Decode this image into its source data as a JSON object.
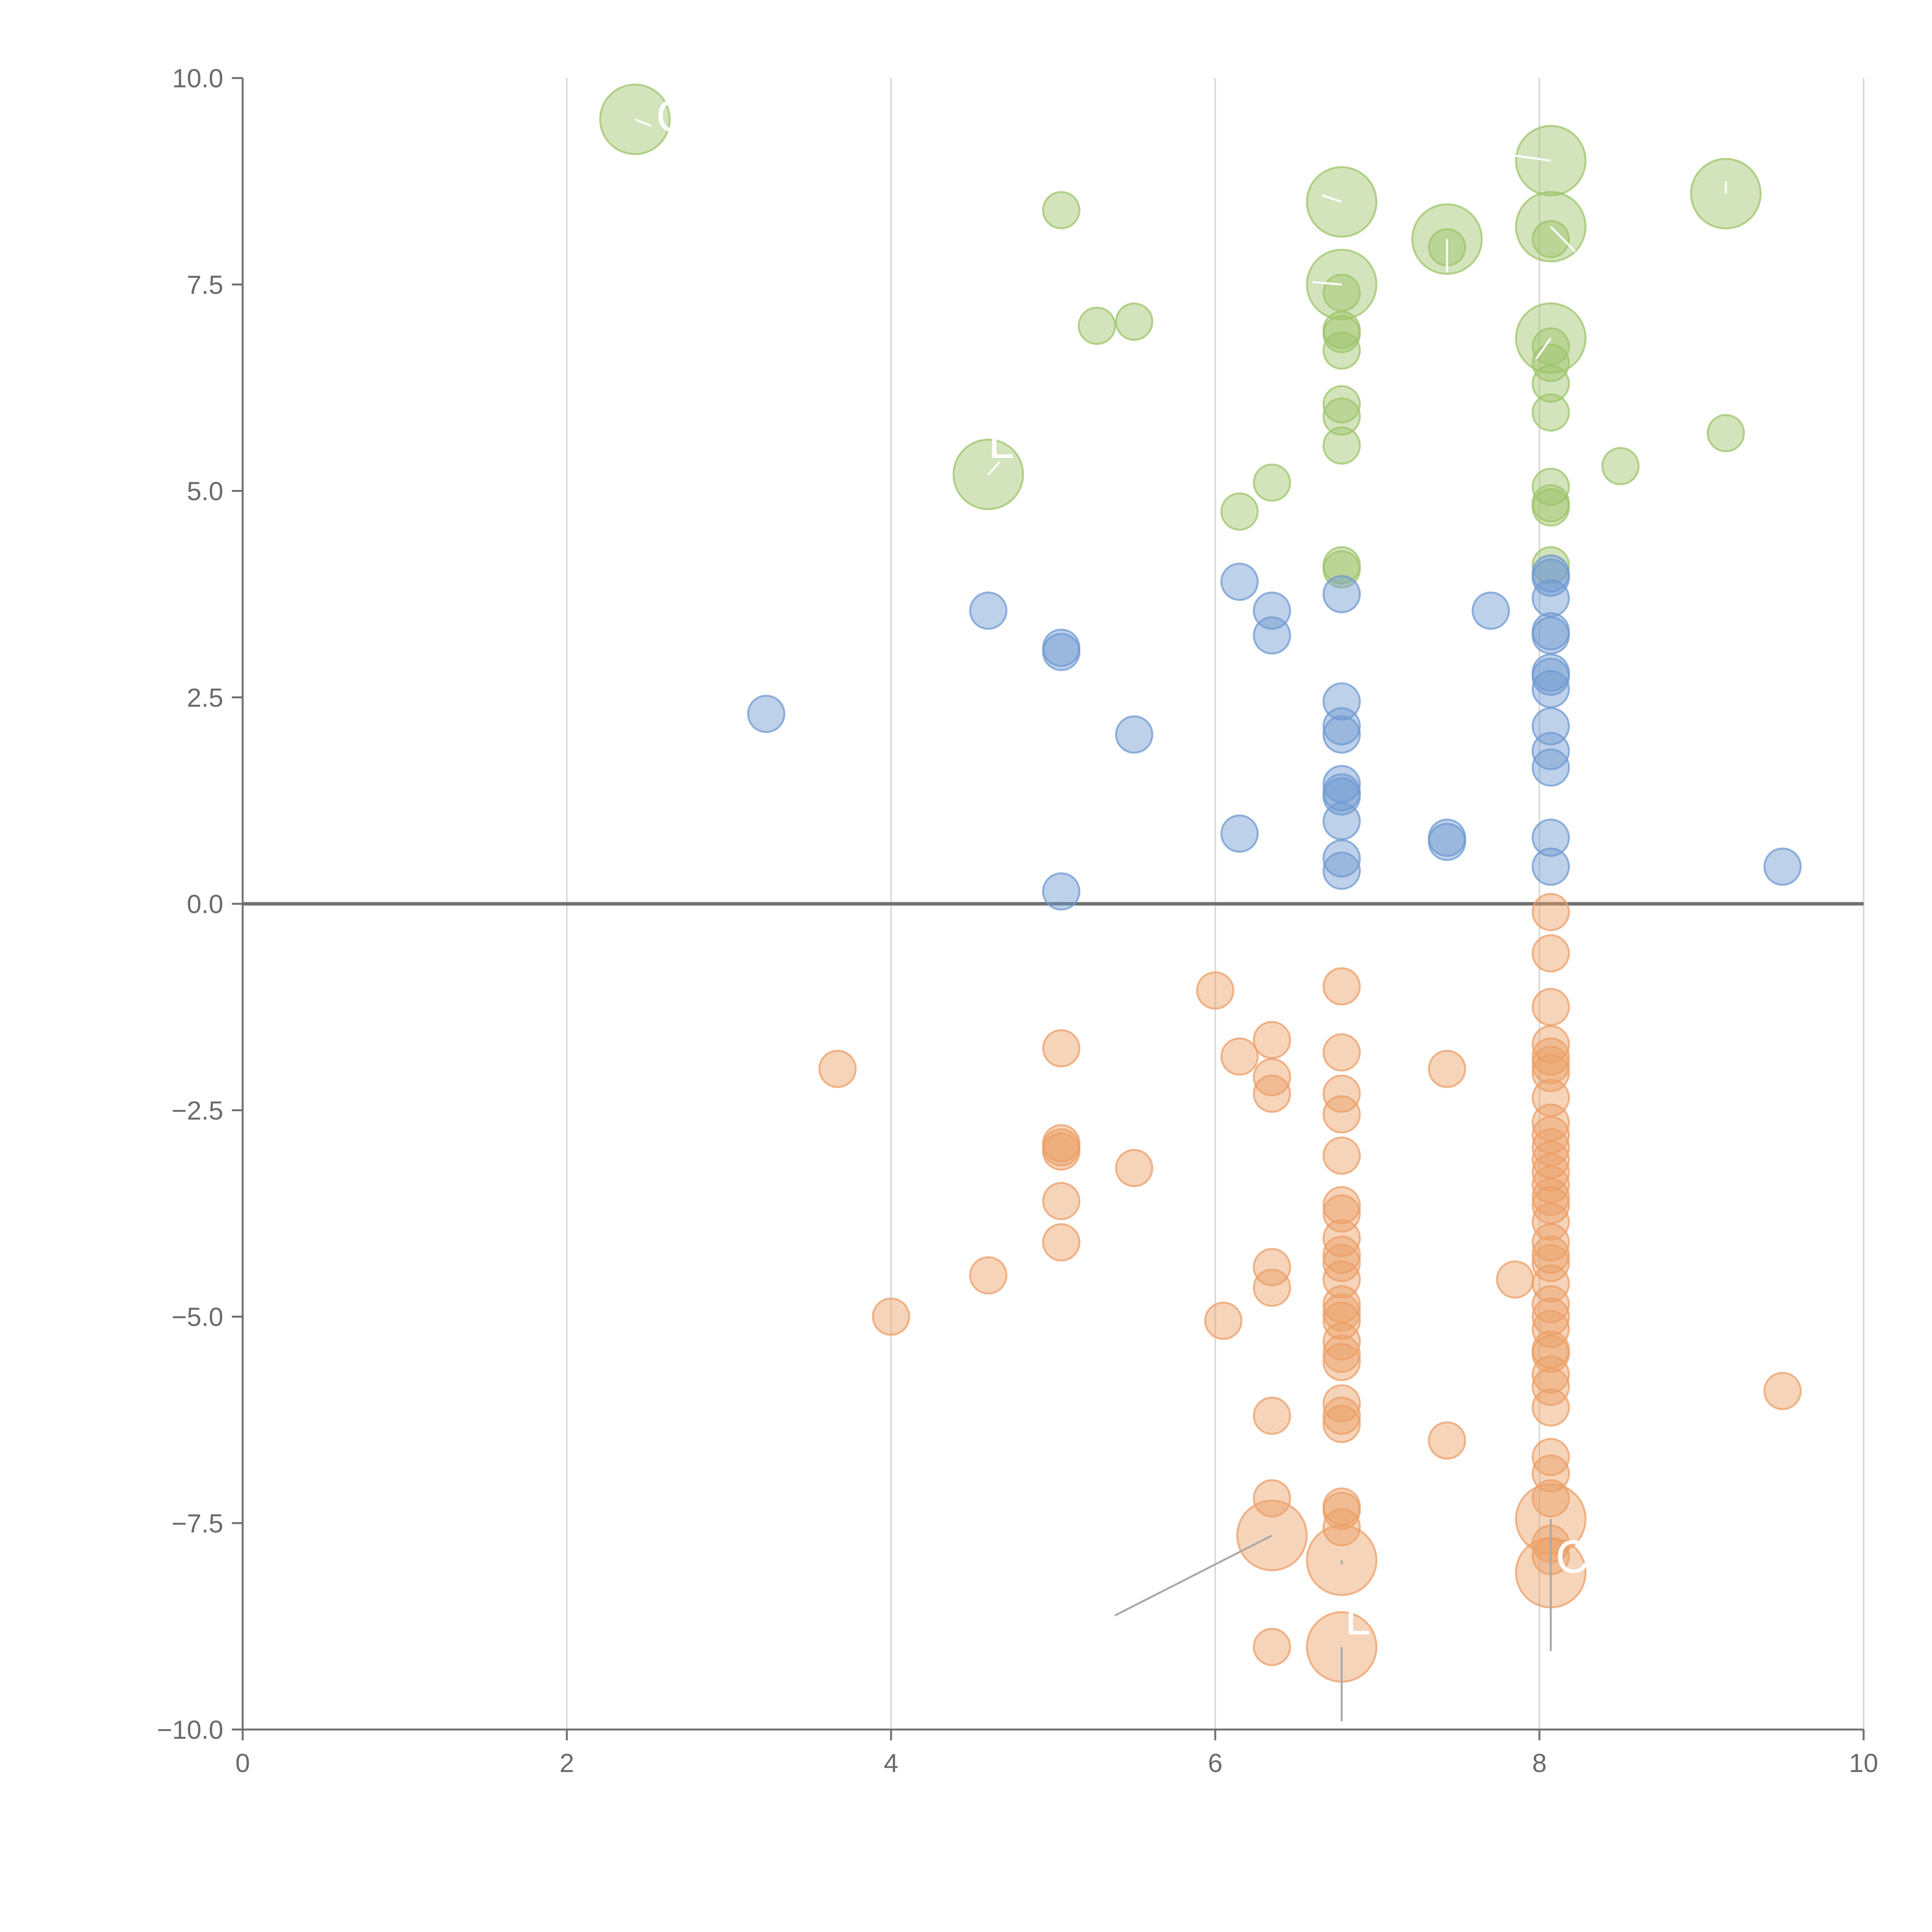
{
  "chart_data": {
    "type": "scatter",
    "title": "",
    "xlabel": "",
    "ylabel": "",
    "xlim": [
      0,
      10
    ],
    "ylim": [
      -10,
      10
    ],
    "x_ticks": [
      "0",
      "2",
      "4",
      "6",
      "8",
      "10"
    ],
    "x_tick_values": [
      0,
      2,
      4,
      6,
      8,
      10
    ],
    "y_ticks": [
      "10.0",
      "7.5",
      "5.0",
      "2.5",
      "0.0",
      "−2.5",
      "−5.0",
      "−7.5",
      "−10.0"
    ],
    "y_tick_values": [
      10,
      7.5,
      5,
      2.5,
      0,
      -2.5,
      -5,
      -7.5,
      -10
    ],
    "grid": "vertical",
    "legend": "none",
    "bubble_scale": "small = 1, large = 2",
    "series": [
      {
        "name": "green",
        "color": "#9dc46a",
        "points": [
          [
            2.42,
            9.5,
            2
          ],
          [
            5.05,
            8.4,
            1
          ],
          [
            5.27,
            7.0,
            1
          ],
          [
            5.5,
            7.05,
            1
          ],
          [
            4.6,
            5.2,
            2
          ],
          [
            6.15,
            4.75,
            1
          ],
          [
            6.35,
            5.1,
            1
          ],
          [
            6.78,
            8.5,
            2
          ],
          [
            6.78,
            7.5,
            2
          ],
          [
            6.78,
            7.4,
            1
          ],
          [
            6.78,
            6.95,
            1
          ],
          [
            6.78,
            6.9,
            1
          ],
          [
            6.78,
            6.7,
            1
          ],
          [
            6.78,
            6.05,
            1
          ],
          [
            6.78,
            5.9,
            1
          ],
          [
            6.78,
            5.55,
            1
          ],
          [
            6.78,
            4.1,
            1
          ],
          [
            6.78,
            4.05,
            1
          ],
          [
            7.43,
            8.05,
            2
          ],
          [
            7.43,
            7.95,
            1
          ],
          [
            8.07,
            9.0,
            2
          ],
          [
            8.07,
            8.2,
            2
          ],
          [
            8.07,
            8.05,
            1
          ],
          [
            8.07,
            6.85,
            2
          ],
          [
            8.07,
            6.75,
            1
          ],
          [
            8.07,
            6.55,
            1
          ],
          [
            8.07,
            6.3,
            1
          ],
          [
            8.07,
            5.95,
            1
          ],
          [
            8.07,
            5.05,
            1
          ],
          [
            8.07,
            4.85,
            1
          ],
          [
            8.07,
            4.8,
            1
          ],
          [
            8.07,
            4.1,
            1
          ],
          [
            8.5,
            5.3,
            1
          ],
          [
            9.15,
            8.6,
            2
          ],
          [
            9.15,
            5.7,
            1
          ]
        ]
      },
      {
        "name": "blue",
        "color": "#6f9ad1",
        "points": [
          [
            3.23,
            2.3,
            1
          ],
          [
            4.6,
            3.55,
            1
          ],
          [
            5.05,
            3.1,
            1
          ],
          [
            5.05,
            3.05,
            1
          ],
          [
            5.05,
            0.15,
            1
          ],
          [
            5.5,
            2.05,
            1
          ],
          [
            6.15,
            3.9,
            1
          ],
          [
            6.15,
            0.85,
            1
          ],
          [
            6.35,
            3.55,
            1
          ],
          [
            6.35,
            3.25,
            1
          ],
          [
            6.78,
            3.75,
            1
          ],
          [
            6.78,
            2.45,
            1
          ],
          [
            6.78,
            2.15,
            1
          ],
          [
            6.78,
            2.05,
            1
          ],
          [
            6.78,
            1.45,
            1
          ],
          [
            6.78,
            1.35,
            1
          ],
          [
            6.78,
            1.3,
            1
          ],
          [
            6.78,
            1.0,
            1
          ],
          [
            6.78,
            0.55,
            1
          ],
          [
            6.78,
            0.4,
            1
          ],
          [
            7.43,
            0.8,
            1
          ],
          [
            7.43,
            0.75,
            1
          ],
          [
            7.7,
            3.55,
            1
          ],
          [
            8.07,
            4.0,
            1
          ],
          [
            8.07,
            3.95,
            1
          ],
          [
            8.07,
            3.7,
            1
          ],
          [
            8.07,
            3.3,
            1
          ],
          [
            8.07,
            3.25,
            1
          ],
          [
            8.07,
            2.8,
            1
          ],
          [
            8.07,
            2.75,
            1
          ],
          [
            8.07,
            2.6,
            1
          ],
          [
            8.07,
            2.15,
            1
          ],
          [
            8.07,
            1.85,
            1
          ],
          [
            8.07,
            1.65,
            1
          ],
          [
            8.07,
            0.8,
            1
          ],
          [
            8.07,
            0.45,
            1
          ],
          [
            9.5,
            0.45,
            1
          ]
        ]
      },
      {
        "name": "orange",
        "color": "#ec9f67",
        "points": [
          [
            3.67,
            -2.0,
            1
          ],
          [
            4.0,
            -5.0,
            1
          ],
          [
            4.6,
            -4.5,
            1
          ],
          [
            5.05,
            -1.75,
            1
          ],
          [
            5.05,
            -2.9,
            1
          ],
          [
            5.05,
            -2.95,
            1
          ],
          [
            5.05,
            -3.0,
            1
          ],
          [
            5.05,
            -3.6,
            1
          ],
          [
            5.05,
            -4.1,
            1
          ],
          [
            5.5,
            -3.2,
            1
          ],
          [
            6.0,
            -1.05,
            1
          ],
          [
            6.05,
            -5.05,
            1
          ],
          [
            6.15,
            -1.85,
            1
          ],
          [
            6.35,
            -1.65,
            1
          ],
          [
            6.35,
            -2.1,
            1
          ],
          [
            6.35,
            -2.3,
            1
          ],
          [
            6.35,
            -4.4,
            1
          ],
          [
            6.35,
            -4.65,
            1
          ],
          [
            6.35,
            -6.2,
            1
          ],
          [
            6.35,
            -7.2,
            1
          ],
          [
            6.35,
            -7.65,
            2
          ],
          [
            6.35,
            -9.0,
            1
          ],
          [
            6.78,
            -1.0,
            1
          ],
          [
            6.78,
            -1.8,
            1
          ],
          [
            6.78,
            -2.3,
            1
          ],
          [
            6.78,
            -2.55,
            1
          ],
          [
            6.78,
            -3.05,
            1
          ],
          [
            6.78,
            -3.65,
            1
          ],
          [
            6.78,
            -3.75,
            1
          ],
          [
            6.78,
            -4.05,
            1
          ],
          [
            6.78,
            -4.25,
            1
          ],
          [
            6.78,
            -4.35,
            1
          ],
          [
            6.78,
            -4.55,
            1
          ],
          [
            6.78,
            -4.85,
            1
          ],
          [
            6.78,
            -4.95,
            1
          ],
          [
            6.78,
            -5.05,
            1
          ],
          [
            6.78,
            -5.3,
            1
          ],
          [
            6.78,
            -5.45,
            1
          ],
          [
            6.78,
            -5.55,
            1
          ],
          [
            6.78,
            -6.05,
            1
          ],
          [
            6.78,
            -6.2,
            1
          ],
          [
            6.78,
            -6.3,
            1
          ],
          [
            6.78,
            -7.3,
            1
          ],
          [
            6.78,
            -7.35,
            1
          ],
          [
            6.78,
            -7.55,
            1
          ],
          [
            6.78,
            -7.95,
            2
          ],
          [
            6.78,
            -9.0,
            2
          ],
          [
            7.43,
            -2.0,
            1
          ],
          [
            7.43,
            -6.5,
            1
          ],
          [
            7.85,
            -4.55,
            1
          ],
          [
            8.07,
            -0.1,
            1
          ],
          [
            8.07,
            -0.6,
            1
          ],
          [
            8.07,
            -1.25,
            1
          ],
          [
            8.07,
            -1.7,
            1
          ],
          [
            8.07,
            -1.85,
            1
          ],
          [
            8.07,
            -1.95,
            1
          ],
          [
            8.07,
            -2.05,
            1
          ],
          [
            8.07,
            -2.35,
            1
          ],
          [
            8.07,
            -2.65,
            1
          ],
          [
            8.07,
            -2.8,
            1
          ],
          [
            8.07,
            -2.95,
            1
          ],
          [
            8.07,
            -3.1,
            1
          ],
          [
            8.07,
            -3.25,
            1
          ],
          [
            8.07,
            -3.4,
            1
          ],
          [
            8.07,
            -3.55,
            1
          ],
          [
            8.07,
            -3.65,
            1
          ],
          [
            8.07,
            -3.85,
            1
          ],
          [
            8.07,
            -4.1,
            1
          ],
          [
            8.07,
            -4.25,
            1
          ],
          [
            8.07,
            -4.35,
            1
          ],
          [
            8.07,
            -4.6,
            1
          ],
          [
            8.07,
            -4.85,
            1
          ],
          [
            8.07,
            -5.0,
            1
          ],
          [
            8.07,
            -5.15,
            1
          ],
          [
            8.07,
            -5.4,
            1
          ],
          [
            8.07,
            -5.45,
            1
          ],
          [
            8.07,
            -5.7,
            1
          ],
          [
            8.07,
            -5.85,
            1
          ],
          [
            8.07,
            -6.1,
            1
          ],
          [
            8.07,
            -6.7,
            1
          ],
          [
            8.07,
            -6.9,
            1
          ],
          [
            8.07,
            -7.2,
            1
          ],
          [
            8.07,
            -7.45,
            2
          ],
          [
            8.07,
            -7.75,
            1
          ],
          [
            8.07,
            -7.9,
            1
          ],
          [
            8.07,
            -8.1,
            2
          ],
          [
            9.5,
            -5.9,
            1
          ]
        ]
      }
    ],
    "leader_lines": [
      {
        "series": "green",
        "from": [
          2.42,
          9.5
        ],
        "to": [
          2.52,
          9.42
        ]
      },
      {
        "series": "green",
        "from": [
          4.6,
          5.2
        ],
        "to": [
          4.67,
          5.35
        ]
      },
      {
        "series": "green",
        "from": [
          6.78,
          8.5
        ],
        "to": [
          6.66,
          8.58
        ]
      },
      {
        "series": "green",
        "from": [
          6.78,
          7.5
        ],
        "to": [
          6.6,
          7.53
        ]
      },
      {
        "series": "green",
        "from": [
          7.43,
          8.05
        ],
        "to": [
          7.43,
          7.65
        ]
      },
      {
        "series": "green",
        "from": [
          8.07,
          9.0
        ],
        "to": [
          7.85,
          9.06
        ]
      },
      {
        "series": "green",
        "from": [
          8.07,
          8.2
        ],
        "to": [
          8.22,
          7.9
        ]
      },
      {
        "series": "green",
        "from": [
          8.07,
          6.85
        ],
        "to": [
          7.98,
          6.6
        ]
      },
      {
        "series": "green",
        "from": [
          9.15,
          8.6
        ],
        "to": [
          9.15,
          8.75
        ]
      },
      {
        "series": "orange",
        "from": [
          6.35,
          -7.65
        ],
        "to": [
          5.38,
          -8.62
        ]
      },
      {
        "series": "orange",
        "from": [
          6.78,
          -7.95
        ],
        "to": [
          6.78,
          -8.0
        ]
      },
      {
        "series": "orange",
        "from": [
          6.78,
          -9.0
        ],
        "to": [
          6.78,
          -9.9
        ]
      },
      {
        "series": "orange",
        "from": [
          8.07,
          -7.45
        ],
        "to": [
          8.07,
          -9.05
        ]
      }
    ],
    "annotations": [
      {
        "text": "C",
        "x": 2.55,
        "y": 9.35
      },
      {
        "text": "L",
        "x": 4.6,
        "y": 5.4
      },
      {
        "text": "L",
        "x": 6.8,
        "y": -8.85
      },
      {
        "text": "C",
        "x": 8.1,
        "y": -8.1
      }
    ]
  }
}
